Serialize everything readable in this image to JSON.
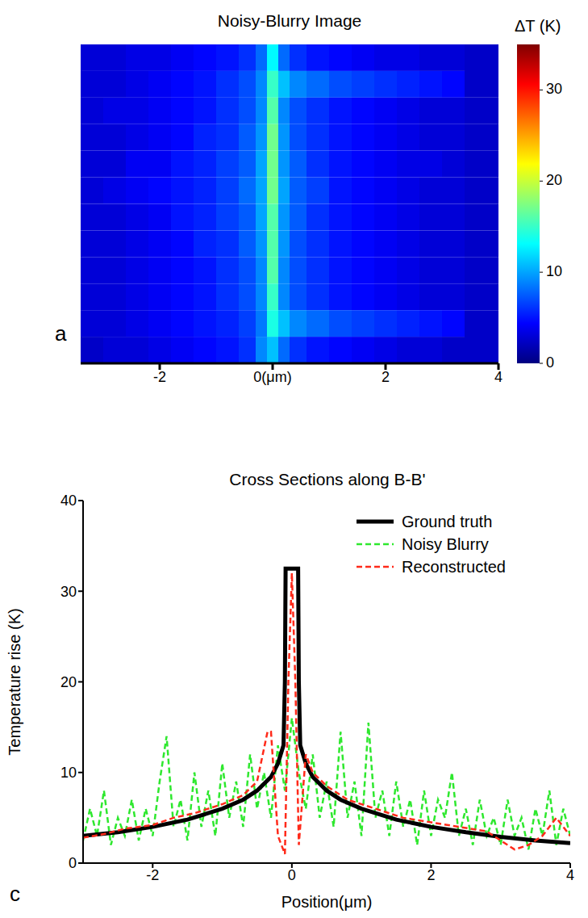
{
  "chart_data": [
    {
      "type": "heatmap",
      "title": "Noisy-Blurry Image",
      "panel_label": "a",
      "xlim": [
        -3.4,
        4
      ],
      "xticks": [
        -2,
        {
          "value": 0,
          "label": "0(μm)"
        },
        2,
        4
      ],
      "tick_labels": "x",
      "x_edges": [
        -3.4,
        -3.0,
        -2.6,
        -2.2,
        -1.8,
        -1.4,
        -1.0,
        -0.6,
        -0.3,
        -0.1,
        0.1,
        0.3,
        0.6,
        1.0,
        1.4,
        1.8,
        2.2,
        2.6,
        3.0,
        3.4,
        4.0
      ],
      "cells": [
        [
          3,
          3,
          3.5,
          3.5,
          4,
          4.5,
          5,
          6,
          8,
          13,
          8,
          6,
          5,
          4.5,
          4,
          3.5,
          3.5,
          3,
          3,
          2.5
        ],
        [
          3,
          3,
          3.5,
          4,
          4.5,
          5,
          6,
          7,
          9,
          15,
          11,
          9,
          8,
          7,
          6.5,
          6,
          5.5,
          5,
          4.5,
          2.5
        ],
        [
          3,
          3.5,
          3.5,
          4,
          4.5,
          5,
          6,
          7,
          9,
          16,
          9,
          7,
          6,
          5,
          4.5,
          4,
          3.5,
          3,
          3,
          2.5
        ],
        [
          3,
          3,
          3.5,
          4,
          4.5,
          5.5,
          6,
          7.5,
          9.5,
          17,
          9.5,
          7,
          6,
          5,
          4.5,
          4,
          3.5,
          3,
          3,
          2.5
        ],
        [
          3,
          3,
          4,
          4,
          5,
          5.5,
          6.5,
          7.5,
          10,
          17,
          9.5,
          7.5,
          6,
          5,
          4.5,
          4,
          3.5,
          3.5,
          3,
          2.5
        ],
        [
          3,
          3.5,
          4,
          4.5,
          5,
          5.5,
          6.5,
          8,
          10,
          17,
          10,
          7.5,
          6.5,
          5,
          4.5,
          4,
          3.5,
          3,
          3,
          2.5
        ],
        [
          3,
          3,
          3.5,
          4,
          5,
          5.5,
          6.5,
          7.5,
          10,
          16,
          9.5,
          7.5,
          6,
          5,
          4.5,
          4,
          3.5,
          3,
          3,
          2.5
        ],
        [
          3,
          3,
          3.5,
          4,
          4.5,
          5.5,
          6,
          7.5,
          9.5,
          16,
          9.5,
          7,
          6,
          5,
          4.5,
          4,
          3.5,
          3,
          3,
          2.5
        ],
        [
          3,
          3,
          3.5,
          4,
          4.5,
          5,
          6,
          7,
          9,
          16,
          9,
          7,
          6,
          5,
          4.5,
          4,
          3.5,
          3,
          3,
          2.5
        ],
        [
          3,
          3,
          3.5,
          4,
          4.5,
          5,
          6,
          7,
          9,
          15,
          9,
          7,
          6,
          5,
          4.5,
          4,
          3.5,
          3,
          3,
          2.5
        ],
        [
          3,
          3,
          3.5,
          4,
          4.5,
          5,
          5.5,
          6.5,
          8.5,
          14,
          11,
          9,
          8,
          7,
          6.5,
          6,
          5.5,
          5,
          4.5,
          2.5
        ],
        [
          2.5,
          3,
          3,
          3.5,
          4,
          4.5,
          5,
          6,
          9,
          11,
          8,
          6,
          5,
          4.5,
          4,
          3.5,
          3,
          3,
          2.5,
          2.5
        ]
      ],
      "colorbar": {
        "label": "ΔT (K)",
        "range": [
          0,
          35
        ],
        "ticks": [
          0,
          10,
          20,
          30
        ]
      }
    },
    {
      "type": "line",
      "title": "Cross Sections along B-B'",
      "panel_label": "c",
      "x_label": "Position(μm)",
      "y_label": "Temperature rise (K)",
      "xlim": [
        -3,
        4
      ],
      "xticks": [
        -2,
        0,
        2,
        4
      ],
      "ylim": [
        0,
        40
      ],
      "yticks": [
        0,
        10,
        20,
        30,
        40
      ],
      "legend": "top right",
      "series": [
        {
          "name": "Ground truth",
          "color": "#000000",
          "line_style": "solid",
          "x": [
            -3,
            -2.5,
            -2,
            -1.5,
            -1,
            -0.7,
            -0.5,
            -0.3,
            -0.2,
            -0.12,
            -0.1,
            -0.09,
            0.09,
            0.1,
            0.12,
            0.2,
            0.3,
            0.5,
            0.7,
            1,
            1.5,
            2,
            2.5,
            3,
            3.5,
            4
          ],
          "values": [
            3,
            3.4,
            4,
            4.8,
            6,
            7,
            8,
            9.5,
            11,
            13,
            20,
            32.5,
            32.5,
            20,
            13,
            11,
            9.5,
            8,
            7,
            6,
            4.8,
            4,
            3.4,
            2.9,
            2.5,
            2.2
          ]
        },
        {
          "name": "Noisy Blurry",
          "color": "#2ee82e",
          "line_style": "dashed",
          "x": [
            -3.0,
            -2.9,
            -2.8,
            -2.7,
            -2.6,
            -2.5,
            -2.4,
            -2.3,
            -2.2,
            -2.1,
            -2.0,
            -1.9,
            -1.8,
            -1.7,
            -1.6,
            -1.5,
            -1.4,
            -1.3,
            -1.2,
            -1.1,
            -1.0,
            -0.9,
            -0.8,
            -0.7,
            -0.6,
            -0.5,
            -0.4,
            -0.3,
            -0.2,
            -0.1,
            0.0,
            0.1,
            0.2,
            0.3,
            0.4,
            0.5,
            0.6,
            0.7,
            0.8,
            0.9,
            1.0,
            1.1,
            1.2,
            1.3,
            1.4,
            1.5,
            1.6,
            1.7,
            1.8,
            1.9,
            2.0,
            2.1,
            2.2,
            2.3,
            2.4,
            2.5,
            2.6,
            2.7,
            2.8,
            2.9,
            3.0,
            3.1,
            3.2,
            3.3,
            3.4,
            3.5,
            3.6,
            3.7,
            3.8,
            3.9,
            4.0
          ],
          "values": [
            2.5,
            6,
            3,
            8,
            2,
            5,
            3,
            7,
            2.5,
            6,
            3,
            9,
            14,
            4,
            7,
            2.5,
            10,
            4,
            8,
            3,
            11,
            5,
            9,
            4,
            12,
            6,
            10,
            5,
            13,
            8,
            16,
            10,
            6,
            12,
            5,
            9,
            4,
            14.5,
            5,
            9,
            3,
            15.5,
            5,
            8,
            3,
            9,
            4,
            7,
            2,
            8,
            3,
            7,
            5,
            10,
            3,
            6,
            2,
            7,
            3,
            5,
            2,
            7,
            3,
            5,
            1.5,
            6,
            3,
            8,
            2,
            6,
            3
          ]
        },
        {
          "name": "Reconstructed",
          "color": "#ff2a1a",
          "line_style": "dashed",
          "x": [
            -3,
            -2.7,
            -2.4,
            -2,
            -1.7,
            -1.4,
            -1,
            -0.7,
            -0.5,
            -0.35,
            -0.3,
            -0.2,
            -0.1,
            -0.05,
            0,
            0.05,
            0.1,
            0.2,
            0.3,
            0.5,
            0.8,
            1.2,
            1.6,
            2,
            2.4,
            2.8,
            3,
            3.2,
            3.4,
            3.6,
            3.8,
            4
          ],
          "values": [
            2.8,
            3.2,
            3.8,
            4.2,
            5,
            5.5,
            6.5,
            7.5,
            9,
            14.5,
            14.5,
            3,
            1,
            20,
            32,
            20,
            2,
            12,
            10,
            8.5,
            7,
            6,
            5,
            4.5,
            4,
            3.5,
            2.5,
            1.5,
            2,
            3,
            5,
            3
          ]
        }
      ]
    }
  ]
}
